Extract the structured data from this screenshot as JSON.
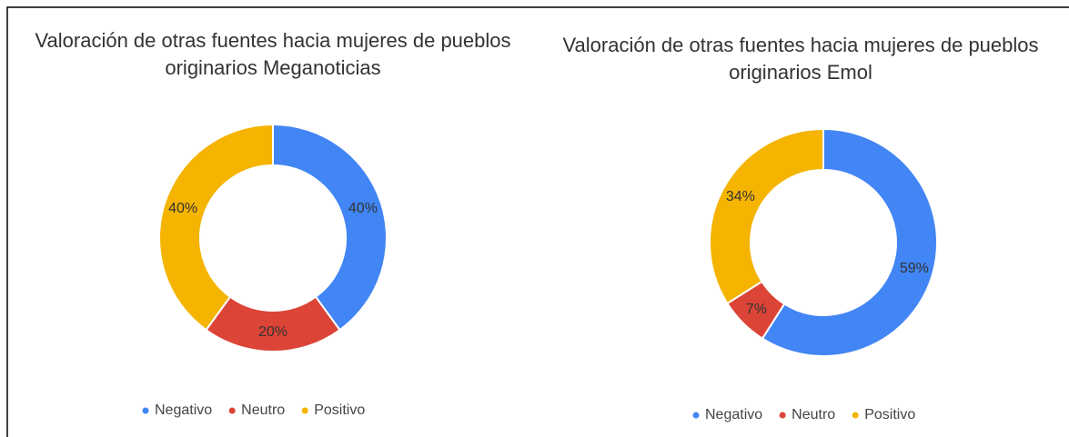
{
  "chart_data": [
    {
      "type": "pie",
      "title": "Valoración de otras fuentes hacia mujeres de pueblos originarios Meganoticias",
      "categories": [
        "Negativo",
        "Neutro",
        "Positivo"
      ],
      "values": [
        40,
        20,
        40
      ],
      "value_labels": [
        "40%",
        "20%",
        "40%"
      ],
      "colors": [
        "#4285f4",
        "#db4437",
        "#f4b400"
      ],
      "legend": "bottom"
    },
    {
      "type": "pie",
      "title": "Valoración de otras fuentes hacia mujeres de pueblos originarios Emol",
      "categories": [
        "Negativo",
        "Neutro",
        "Positivo"
      ],
      "values": [
        59,
        7,
        34
      ],
      "value_labels": [
        "59%",
        "7%",
        "34%"
      ],
      "colors": [
        "#4285f4",
        "#db4437",
        "#f4b400"
      ],
      "legend": "bottom"
    }
  ]
}
